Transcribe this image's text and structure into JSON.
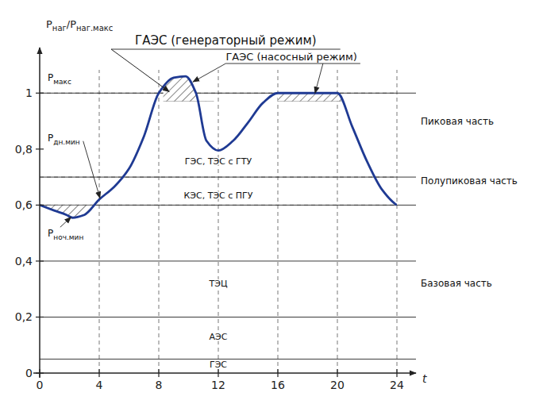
{
  "chart_data": {
    "type": "line",
    "title": "ГАЭС (генераторный режим)",
    "title_arrow_to": [
      8.7,
      1.005
    ],
    "x": [
      0,
      1,
      1.8,
      2.2,
      3,
      4,
      5,
      6,
      7,
      8,
      9.0,
      9.8,
      10.5,
      11.2,
      12,
      13,
      14,
      15,
      16,
      20,
      21,
      22,
      23,
      24
    ],
    "values": [
      0.6,
      0.58,
      0.565,
      0.555,
      0.565,
      0.62,
      0.665,
      0.73,
      0.845,
      1.0,
      1.055,
      1.06,
      1.0,
      0.83,
      0.795,
      0.83,
      0.895,
      0.965,
      1.0,
      1.0,
      0.88,
      0.755,
      0.655,
      0.6
    ],
    "xlim": [
      0,
      24
    ],
    "ylim": [
      0,
      1.1
    ],
    "xticks": [
      0,
      4,
      8,
      12,
      16,
      20,
      24
    ],
    "yticks": [
      0,
      {
        "value": 0.2,
        "label": "0,2"
      },
      {
        "value": 0.4,
        "label": "0,4"
      },
      {
        "value": 0.6,
        "label": "0,6"
      },
      {
        "value": 0.8,
        "label": "0,8"
      },
      1
    ],
    "x_label": "t",
    "y_label": [
      {
        "text": "Р"
      },
      {
        "text": "наг",
        "sub": true
      },
      {
        "text": "/Р"
      },
      {
        "text": "наг.макс",
        "sub": true
      }
    ],
    "dashed_vlines": [
      4,
      8,
      12,
      16,
      20,
      24
    ],
    "dashed_hlines": [
      0.6,
      0.7,
      1.0
    ],
    "band_lines": [
      0.05,
      0.2,
      0.4,
      0.6,
      0.7,
      1.0
    ],
    "hatched": [
      {
        "from": 0,
        "to": 4.5,
        "level": 0.6,
        "side": "below"
      },
      {
        "from": 8.3,
        "to": 11.7,
        "level": 0.97,
        "side": "above"
      },
      {
        "from": 16.0,
        "to": 20.3,
        "level": 0.97,
        "side": "above"
      }
    ],
    "right_labels": [
      {
        "text": "Пиковая часть",
        "y": 0.9
      },
      {
        "text": "Полупиковая часть",
        "y": 0.685
      },
      {
        "text": "Базовая часть",
        "y": 0.32
      }
    ],
    "inner_labels": [
      {
        "text": "ГЭС, ТЭС с ГТУ",
        "x": 12.0,
        "y": 0.755
      },
      {
        "text": "КЭС, ТЭС с ПГУ",
        "x": 12.0,
        "y": 0.635
      },
      {
        "text": "ТЭЦ",
        "x": 12.0,
        "y": 0.32
      },
      {
        "text": "АЭС",
        "x": 12.0,
        "y": 0.13
      },
      {
        "text": "ГЭС",
        "x": 12.0,
        "y": 0.03
      }
    ],
    "level_labels": [
      {
        "parts": [
          {
            "text": "Р"
          },
          {
            "text": "макс",
            "sub": true
          }
        ],
        "y": 1.055
      },
      {
        "parts": [
          {
            "text": "Р"
          },
          {
            "text": "дн.мин",
            "sub": true
          }
        ],
        "y": 0.84,
        "arrow_to": [
          4.05,
          0.625
        ]
      },
      {
        "parts": [
          {
            "text": "Р"
          },
          {
            "text": "ноч.мин",
            "sub": true
          }
        ],
        "y": 0.555,
        "arrow_to": [
          2.1,
          0.557
        ]
      }
    ],
    "annotations": [
      {
        "text": "ГАЭС (насосный режим)",
        "arrows_to": [
          [
            10.3,
            1.04
          ],
          [
            18.5,
            1.0
          ]
        ]
      }
    ]
  }
}
